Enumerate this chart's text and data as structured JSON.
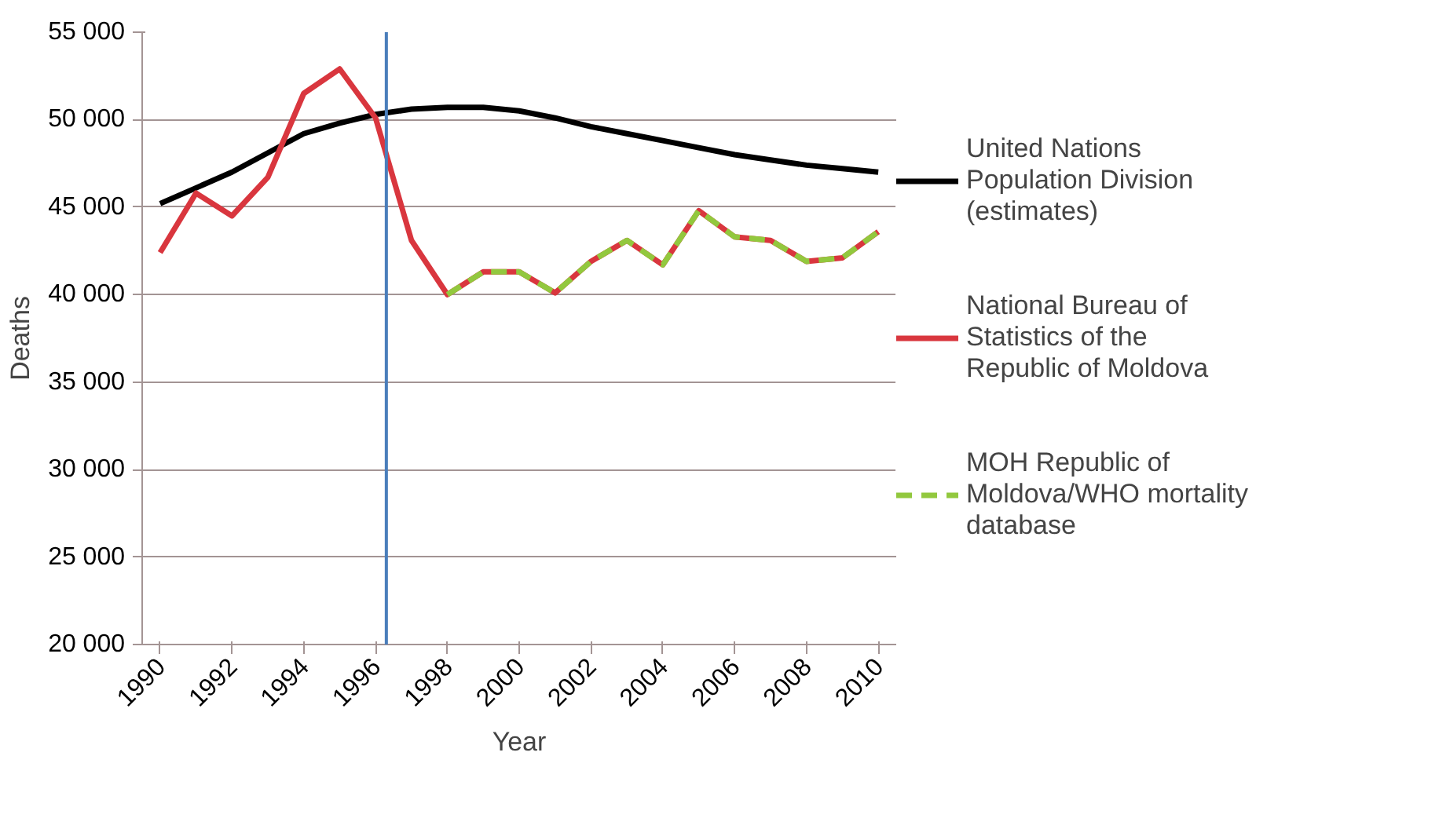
{
  "chart_data": {
    "type": "line",
    "xlabel": "Year",
    "ylabel": "Deaths",
    "x": [
      1990,
      1991,
      1992,
      1993,
      1994,
      1995,
      1996,
      1997,
      1998,
      1999,
      2000,
      2001,
      2002,
      2003,
      2004,
      2005,
      2006,
      2007,
      2008,
      2009,
      2010
    ],
    "series": [
      {
        "name": "United Nations Population Division (estimates)",
        "color": "#000000",
        "line_style": "solid",
        "values": [
          45200,
          46100,
          47000,
          48100,
          49200,
          49800,
          50300,
          50600,
          50700,
          50700,
          50500,
          50100,
          49600,
          49200,
          48800,
          48400,
          48000,
          47700,
          47400,
          47200,
          47000
        ]
      },
      {
        "name": "National Bureau of Statistics of the Republic of Moldova",
        "color": "#d9363e",
        "line_style": "solid",
        "values": [
          42400,
          45800,
          44500,
          46700,
          51500,
          52900,
          50100,
          43100,
          40000,
          41300,
          41300,
          40100,
          41900,
          43100,
          41700,
          44800,
          43300,
          43100,
          41900,
          42100,
          43600
        ]
      },
      {
        "name": "MOH Republic of Moldova/WHO mortality database",
        "color": "#92c83e",
        "line_style": "dashed",
        "values": [
          null,
          null,
          null,
          null,
          null,
          null,
          null,
          null,
          40000,
          41300,
          41300,
          40100,
          41900,
          43100,
          41700,
          44800,
          43300,
          43100,
          41900,
          42100,
          43600
        ]
      }
    ],
    "xlim": [
      1989.5,
      2010.5
    ],
    "xticks": [
      1990,
      1992,
      1994,
      1996,
      1998,
      2000,
      2002,
      2004,
      2006,
      2008,
      2010
    ],
    "ylim": [
      20000,
      55000
    ],
    "yticks": [
      {
        "value": 20000,
        "label": "20 000"
      },
      {
        "value": 25000,
        "label": "25 000"
      },
      {
        "value": 30000,
        "label": "30 000"
      },
      {
        "value": 35000,
        "label": "35 000"
      },
      {
        "value": 40000,
        "label": "40 000"
      },
      {
        "value": 45000,
        "label": "45 000"
      },
      {
        "value": 50000,
        "label": "50 000"
      },
      {
        "value": 55000,
        "label": "55 000"
      }
    ],
    "ref_lines": [
      {
        "axis": "x",
        "value": 1996.3,
        "color": "#4a7ebb",
        "line_style": "solid"
      }
    ],
    "grid": "y",
    "legend": "right",
    "marker": "none"
  }
}
